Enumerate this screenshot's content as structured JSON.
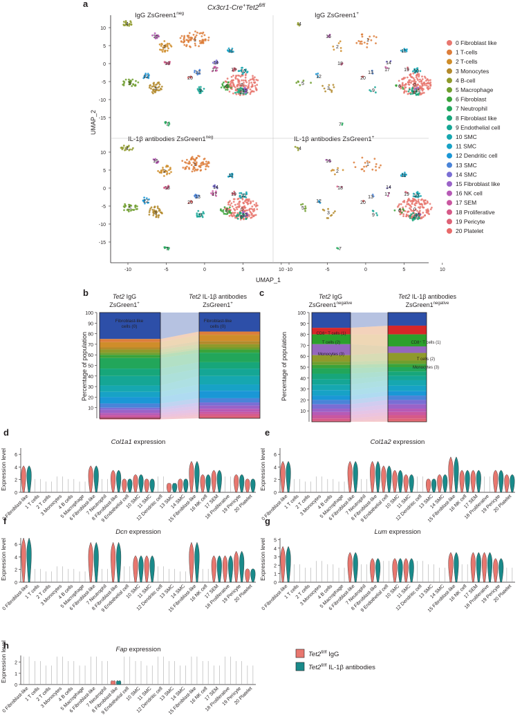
{
  "panel_labels": {
    "a": "a",
    "b": "b",
    "c": "c",
    "d": "d",
    "e": "e",
    "f": "f",
    "g": "g",
    "h": "h"
  },
  "colors": [
    "#e8776f",
    "#dd7e3b",
    "#cf8d2a",
    "#b38a2c",
    "#8f9a2b",
    "#6f9e2e",
    "#3aa33a",
    "#22a65a",
    "#17a67a",
    "#15a695",
    "#16a7b0",
    "#17a2c6",
    "#1a97d6",
    "#4a84d8",
    "#7a6ed4",
    "#9a63c8",
    "#b65ab6",
    "#c957a0",
    "#d65a88",
    "#dd6276",
    "#e86a6a"
  ],
  "umap": {
    "main_title_gene": "Cx3cr1-Cre",
    "main_title_rest": "Tet2",
    "main_title_sup_plus": "+",
    "main_title_sup_flfl": "fl/fl",
    "panels": [
      {
        "label": "IgG ZsGreen1",
        "sup": "neg"
      },
      {
        "label": "IgG ZsGreen1",
        "sup": "+"
      },
      {
        "label": "IL-1β antibodies ZsGreen1",
        "sup": "neg"
      },
      {
        "label": "IL-1β antibodies ZsGreen1",
        "sup": "+"
      }
    ],
    "y_label": "UMAP_2",
    "x_label": "UMAP_1",
    "y_ticks": [
      "10",
      "5",
      "0",
      "-5",
      "-10",
      "-15"
    ],
    "x_ticks": [
      "-10",
      "-5",
      "0",
      "5",
      "10"
    ],
    "legend": [
      "0 Fibroblast like",
      "1 T-cells",
      "2 T-cells",
      "3 Monocytes",
      "4 B-cell",
      "5 Macrophage",
      "6 Fibroblast",
      "7 Neutrophil",
      "8 Fibroblast like",
      "9 Endothelial cell",
      "10 SMC",
      "11 SMC",
      "12 Dendritic cell",
      "13 SMC",
      "14 SMC",
      "15 Fibroblast like",
      "16 NK cell",
      "17 SEM",
      "18 Proliferative",
      "19 Pericyte",
      "20 Platelet"
    ],
    "cluster_numbers": [
      "0",
      "1",
      "2",
      "3",
      "4",
      "5",
      "6",
      "7",
      "8",
      "9",
      "10",
      "11",
      "12",
      "13",
      "14",
      "15",
      "16",
      "17",
      "18",
      "19",
      "20"
    ]
  },
  "panel_b": {
    "left_title_gene": "Tet2",
    "left_title_rest": " IgG",
    "left_sub": "ZsGreen1",
    "left_sub_sup": "+",
    "right_title_gene": "Tet2",
    "right_title_rest": " IL-1β antibodies",
    "right_sub": "ZsGreen1",
    "right_sub_sup": "+",
    "y_label": "Percentage of population",
    "y_ticks": [
      "100",
      "90",
      "80",
      "70",
      "60",
      "50",
      "40",
      "30",
      "20",
      "10"
    ],
    "left_box_line1": "Fibroblast-like",
    "left_box_line2": "cells (0)",
    "right_box_line1": "Fibroblast-like",
    "right_box_line2": "cells (0)"
  },
  "panel_c": {
    "left_title_gene": "Tet2",
    "left_title_rest": " IgG",
    "left_sub": "ZsGreen1",
    "left_sub_sup": "negative",
    "right_title_gene": "Tet2",
    "right_title_rest": " IL-1β antibodies",
    "right_sub": "ZsGreen1",
    "right_sub_sup": "negative",
    "y_label": "Percentage of population",
    "y_ticks": [
      "100",
      "90",
      "80",
      "70",
      "60",
      "50",
      "40",
      "30",
      "20",
      "10"
    ],
    "left_labels": [
      "CD8⁺ T cells (1)",
      "T cells (2)",
      "Monocytes (3)"
    ],
    "right_labels": [
      "CD8⁺ T cells (1)",
      "T cells (2)",
      "Monocytes (3)"
    ]
  },
  "violins": {
    "y_label": "Expression level",
    "categories": [
      "0 Fibroblast-like",
      "1 T cells",
      "2 T cells",
      "3 Monocytes",
      "4 B cells",
      "5 Macrophage",
      "6 Fibroblast-like",
      "7 Neutrophil",
      "8 Fibroblast-like",
      "9 Endothelial cell",
      "10 SMC",
      "11 SMC",
      "12 Dendritic cell",
      "13 SMC",
      "14 SMC",
      "15 Fibroblast-like",
      "16 NK cell",
      "17 SEM",
      "18 Proliferative",
      "19 Pericyte",
      "20 Platelet"
    ],
    "panels": [
      {
        "gene": "Col1a1",
        "suffix": " expression",
        "y_ticks": [
          "6",
          "4",
          "2",
          "0"
        ]
      },
      {
        "gene": "Col1a2",
        "suffix": " expression",
        "y_ticks": [
          "6",
          "4",
          "2",
          "0"
        ]
      },
      {
        "gene": "Dcn",
        "suffix": " expression",
        "y_ticks": [
          "6",
          "4",
          "2",
          "0"
        ]
      },
      {
        "gene": "Lum",
        "suffix": " expression",
        "y_ticks": [
          "5",
          "4",
          "3",
          "2",
          "1",
          "0"
        ]
      },
      {
        "gene": "Fap",
        "suffix": " expression",
        "y_ticks": [
          "2",
          "1",
          "0"
        ]
      }
    ],
    "legend": [
      {
        "gene": "Tet2",
        "sup": "fl/fl",
        "rest": " IgG",
        "color": "#e8776f"
      },
      {
        "gene": "Tet2",
        "sup": "fl/fl",
        "rest": " IL-1β antibodies",
        "color": "#1a8a8a"
      }
    ]
  }
}
